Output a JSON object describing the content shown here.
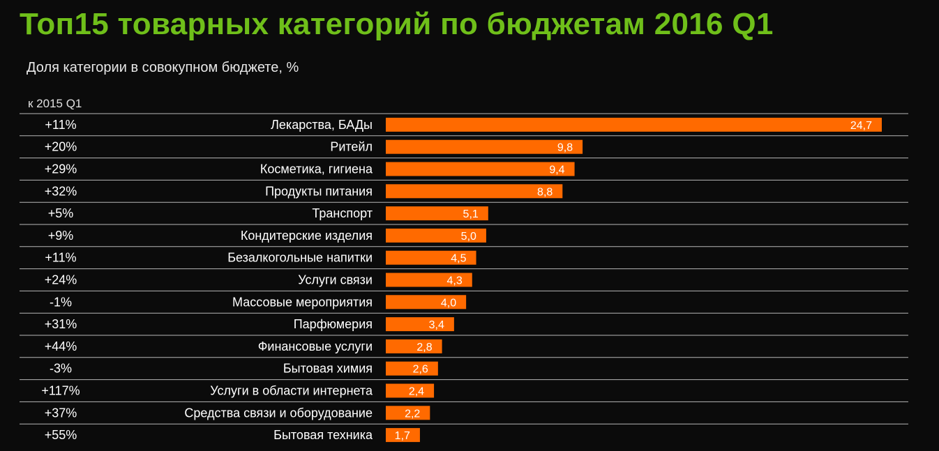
{
  "header": {
    "title": "Топ15 товарных категорий по бюджетам 2016 Q1",
    "subtitle": "Доля категории в совокупном бюджете, %",
    "change_header": "к 2015 Q1"
  },
  "colors": {
    "background": "#0b0b0b",
    "title": "#6fbf1a",
    "bar": "#ff6a00",
    "rule": "#b8b8b8",
    "text": "#ffffff"
  },
  "chart_data": {
    "type": "bar",
    "orientation": "horizontal",
    "title": "Топ15 товарных категорий по бюджетам 2016 Q1",
    "subtitle": "Доля категории в совокупном бюджете, %",
    "categories": [
      "Лекарства, БАДы",
      "Ритейл",
      "Косметика, гигиена",
      "Продукты питания",
      "Транспорт",
      "Кондитерские изделия",
      "Безалкогольные напитки",
      "Услуги связи",
      "Массовые мероприятия",
      "Парфюмерия",
      "Финансовые услуги",
      "Бытовая химия",
      "Услуги в области интернета",
      "Средства связи и оборудование",
      "Бытовая техника"
    ],
    "values": [
      24.7,
      9.8,
      9.4,
      8.8,
      5.1,
      5.0,
      4.5,
      4.3,
      4.0,
      3.4,
      2.8,
      2.6,
      2.4,
      2.2,
      1.7
    ],
    "value_labels": [
      "24,7",
      "9,8",
      "9,4",
      "8,8",
      "5,1",
      "5,0",
      "4,5",
      "4,3",
      "4,0",
      "3,4",
      "2,8",
      "2,6",
      "2,4",
      "2,2",
      "1,7"
    ],
    "change_header": "к 2015 Q1",
    "changes": [
      "+11%",
      "+20%",
      "+29%",
      "+32%",
      "+5%",
      "+9%",
      "+11%",
      "+24%",
      "-1%",
      "+31%",
      "+44%",
      "-3%",
      "+117%",
      "+37%",
      "+55%"
    ],
    "xlim": [
      0,
      26
    ],
    "grid": false,
    "legend": "none"
  }
}
